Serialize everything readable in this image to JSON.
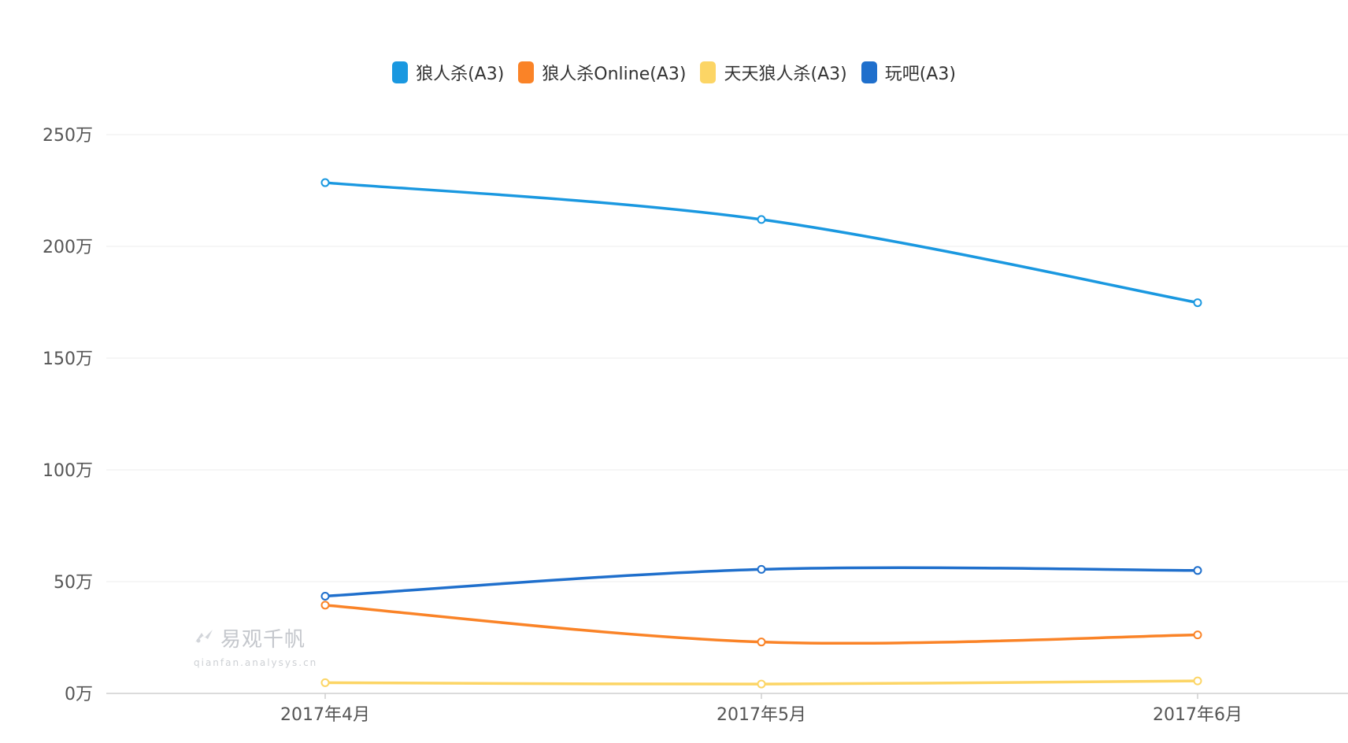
{
  "chart_data": {
    "type": "line",
    "title": "",
    "xlabel": "",
    "ylabel": "",
    "categories": [
      "2017年4月",
      "2017年5月",
      "2017年6月"
    ],
    "y_unit_suffix": "万",
    "ylim": [
      0,
      250
    ],
    "y_ticks": [
      0,
      50,
      100,
      150,
      200,
      250
    ],
    "y_tick_labels": [
      "0万",
      "50万",
      "100万",
      "150万",
      "200万",
      "250万"
    ],
    "grid": true,
    "legend_position": "top-center",
    "series": [
      {
        "name": "狼人杀(A3)",
        "color": "#1a98e0",
        "values": [
          228.5,
          212.0,
          174.8
        ]
      },
      {
        "name": "狼人杀Online(A3)",
        "color": "#fa8327",
        "values": [
          39.5,
          23.0,
          26.2
        ]
      },
      {
        "name": "天天狼人杀(A3)",
        "color": "#fcd565",
        "values": [
          4.8,
          4.2,
          5.6
        ]
      },
      {
        "name": "玩吧(A3)",
        "color": "#1f6fcc",
        "values": [
          43.5,
          55.5,
          55.0
        ]
      }
    ]
  },
  "watermark": {
    "title": "易观千帆",
    "url": "qianfan.analysys.cn",
    "icon": "bird-icon"
  }
}
